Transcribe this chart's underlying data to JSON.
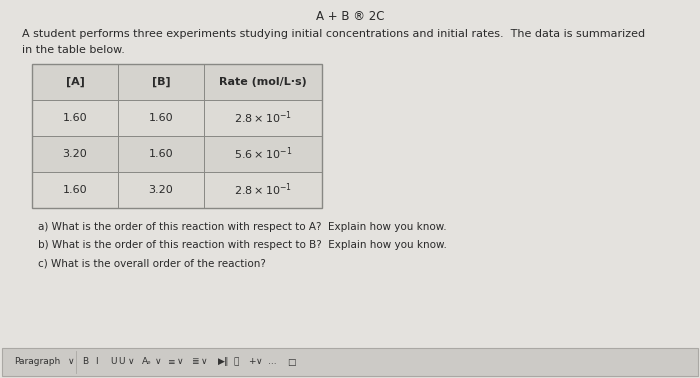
{
  "title": "A + B ® 2C",
  "intro_text_line1": "A student performs three experiments studying initial concentrations and initial rates.  The data is summarized",
  "intro_text_line2": "in the table below.",
  "table_headers": [
    "[A]",
    "[B]",
    "Rate (mol/L·s)"
  ],
  "table_rows": [
    [
      "1.60",
      "1.60",
      "2.8 x 10⁻¹"
    ],
    [
      "3.20",
      "1.60",
      "5.6 x 10⁻¹"
    ],
    [
      "1.60",
      "3.20",
      "2.8 x 10⁻¹"
    ]
  ],
  "questions": [
    "a) What is the order of this reaction with respect to A?  Explain how you know.",
    "b) What is the order of this reaction with respect to B?  Explain how you know.",
    "c) What is the overall order of the reaction?"
  ],
  "bg_color": "#e4e2de",
  "table_header_bg": "#d5d3ce",
  "table_row0_bg": "#dddbd6",
  "table_row1_bg": "#d5d3ce",
  "text_color": "#2a2a2a",
  "toolbar_bg": "#cccac6",
  "toolbar_border": "#aaa8a4",
  "font_size_title": 8.5,
  "font_size_body": 8.0,
  "font_size_table": 8.0,
  "font_size_questions": 7.5,
  "font_size_toolbar": 6.5
}
